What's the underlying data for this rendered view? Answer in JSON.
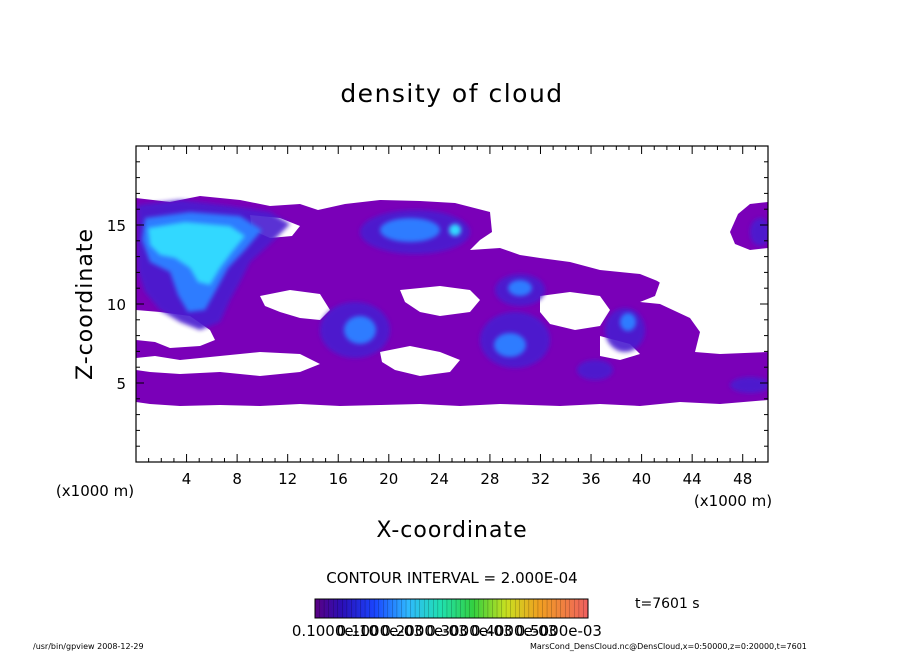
{
  "chart_data": {
    "type": "heatmap",
    "title": "density of cloud",
    "xlabel": "X-coordinate",
    "ylabel": "Z-coordinate",
    "x_unit_label": "(x1000 m)",
    "z_unit_label": "(x1000 m)",
    "x_ticks": [
      4,
      8,
      12,
      16,
      20,
      24,
      28,
      32,
      36,
      40,
      44,
      48
    ],
    "y_ticks": [
      5,
      10,
      15
    ],
    "xlim": [
      0,
      50
    ],
    "ylim": [
      0,
      20
    ],
    "contour_interval": "CONTOUR INTERVAL = 2.000E-04",
    "time_label": "t=7601 s",
    "colorbar_labels": [
      "0.1000e-10",
      "0.1000e-03",
      "0.2000e-03",
      "0.3000e-03",
      "0.4000e-03",
      "0.5000e-03"
    ],
    "colorbar_range": [
      1e-11,
      0.0006
    ],
    "regions": [
      {
        "x": [
          0,
          50
        ],
        "z": [
          3.8,
          16.5
        ],
        "level": 0.5,
        "description": "cloud layer (purple background density)"
      },
      {
        "x": [
          0.5,
          10
        ],
        "z": [
          12,
          16
        ],
        "level": 4.5,
        "description": "high density core upper-left"
      },
      {
        "x": [
          4,
          8
        ],
        "z": [
          8.5,
          12
        ],
        "level": 3.0
      },
      {
        "x": [
          17,
          25
        ],
        "z": [
          13,
          16
        ],
        "level": 2.5
      },
      {
        "x": [
          15,
          21
        ],
        "z": [
          7.5,
          10.5
        ],
        "level": 2.5
      },
      {
        "x": [
          28,
          33
        ],
        "z": [
          6,
          11
        ],
        "level": 2.5
      },
      {
        "x": [
          37,
          40
        ],
        "z": [
          7,
          9.5
        ],
        "level": 2.0
      },
      {
        "x": [
          48.5,
          50
        ],
        "z": [
          13.5,
          16
        ],
        "level": 2.5
      }
    ]
  },
  "footer": {
    "left": "/usr/bin/gpview   2008-12-29",
    "right": "MarsCond_DensCloud.nc@DensCloud,x=0:50000,z=0:20000,t=7601"
  },
  "colors": {
    "cloud_base": "#7a00b8",
    "cloud_dark": "#5400a0",
    "dense_blue": "#1f3ddf",
    "mid_blue": "#2f7bff",
    "cyan": "#33d8ff",
    "background": "#ffffff"
  }
}
